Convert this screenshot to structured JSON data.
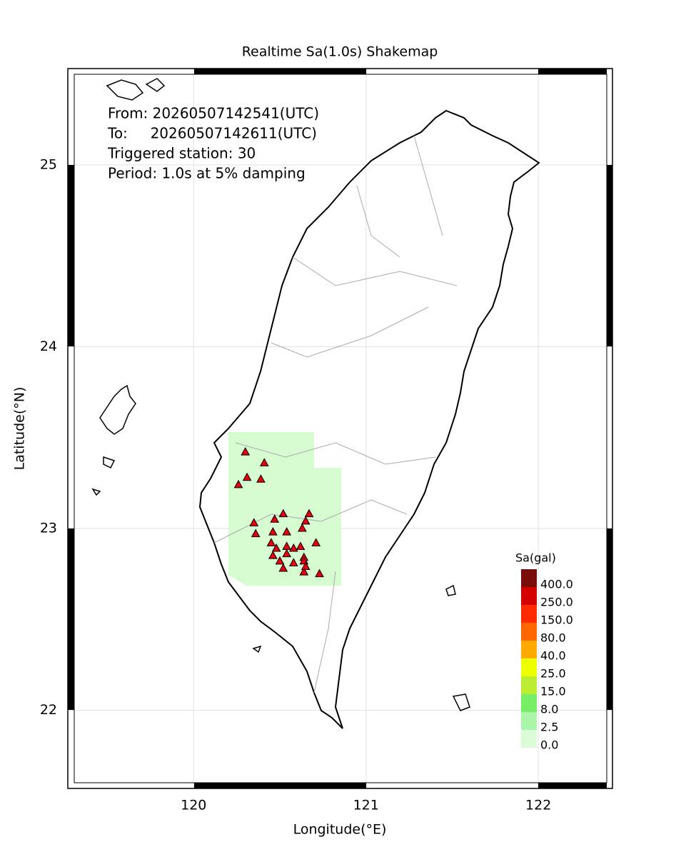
{
  "map": {
    "title": "Realtime Sa(1.0s) Shakemap",
    "info": [
      "From: 20260507142541(UTC)",
      "To:     20260507142611(UTC)",
      "Triggered station: 30",
      "Period: 1.0s at 5% damping"
    ],
    "xlabel": "Longitude(°E)",
    "ylabel": "Latitude(°N)",
    "xlim": [
      119.27,
      122.43
    ],
    "ylim": [
      21.57,
      25.53
    ],
    "xticks": [
      120,
      121,
      122
    ],
    "yticks": [
      22,
      23,
      24,
      25
    ],
    "grid": true,
    "legend": {
      "title": "Sa(gal)",
      "levels": [
        {
          "value": 400,
          "label": "400.0",
          "color": "#7a0c0c"
        },
        {
          "value": 250,
          "label": "250.0",
          "color": "#d40000"
        },
        {
          "value": 150,
          "label": "150.0",
          "color": "#ff2a00"
        },
        {
          "value": 80,
          "label": "80.0",
          "color": "#ff6600"
        },
        {
          "value": 40,
          "label": "40.0",
          "color": "#ffaa00"
        },
        {
          "value": 25,
          "label": "25.0",
          "color": "#eeff00"
        },
        {
          "value": 15,
          "label": "15.0",
          "color": "#bbee33"
        },
        {
          "value": 8,
          "label": "8.0",
          "color": "#77ee66"
        },
        {
          "value": 2.5,
          "label": "2.5",
          "color": "#aaf5aa"
        },
        {
          "value": 0,
          "label": "0.0",
          "color": "#dcfcd8"
        }
      ]
    },
    "stations": {
      "color": "#e8000b",
      "lon": [
        120.3,
        120.41,
        120.31,
        120.39,
        120.26,
        120.52,
        120.47,
        120.67,
        120.65,
        120.35,
        120.63,
        120.36,
        120.46,
        120.54,
        120.45,
        120.48,
        120.54,
        120.58,
        120.62,
        120.71,
        120.46,
        120.54,
        120.64,
        120.5,
        120.58,
        120.64,
        120.52,
        120.64,
        120.73,
        120.65
      ],
      "lat": [
        23.42,
        23.36,
        23.28,
        23.27,
        23.24,
        23.08,
        23.05,
        23.08,
        23.04,
        23.03,
        23.0,
        22.97,
        22.98,
        22.98,
        22.92,
        22.89,
        22.9,
        22.89,
        22.9,
        22.92,
        22.85,
        22.86,
        22.84,
        22.82,
        22.81,
        22.82,
        22.78,
        22.76,
        22.75,
        22.79
      ]
    }
  }
}
